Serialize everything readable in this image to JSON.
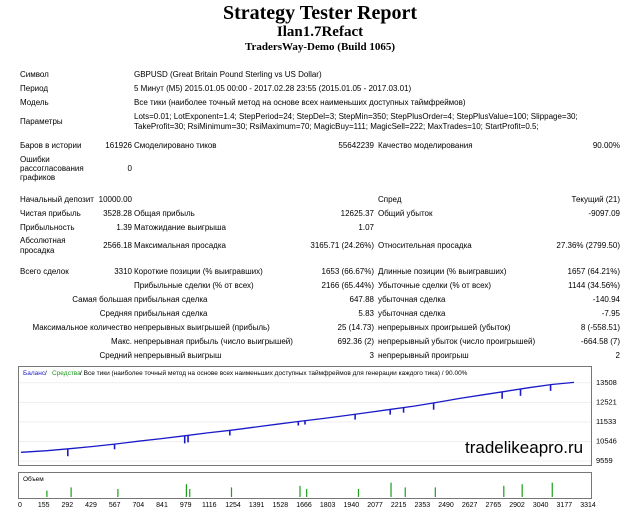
{
  "header": {
    "title": "Strategy Tester Report",
    "ea_name": "Ilan1.7Refact",
    "server": "TradersWay-Demo (Build 1065)"
  },
  "info": {
    "symbol_label": "Символ",
    "symbol_value": "GBPUSD (Great Britain Pound Sterling vs US Dollar)",
    "period_label": "Период",
    "period_value": "5 Минут (M5) 2015.01.05 00:00 - 2017.02.28 23:55 (2015.01.05 - 2017.03.01)",
    "model_label": "Модель",
    "model_value": "Все тики (наиболее точный метод на основе всех наименьших доступных таймфреймов)",
    "params_label": "Параметры",
    "params_line1": "Lots=0.01; LotExponent=1.4; StepPeriod=24; StepDel=3; StepMin=350; StepPlusOrder=4; StepPlusValue=100; Slippage=30;",
    "params_line2": "TakeProfit=30; RsiMinimum=30; RsiMaximum=70; MagicBuy=111; MagicSell=222; MaxTrades=10; StartProfit=0.5;"
  },
  "stats": {
    "bars_label": "Баров в истории",
    "bars_value": "161926",
    "ticks_label": "Смоделировано тиков",
    "ticks_value": "55642239",
    "quality_label": "Качество моделирования",
    "quality_value": "90.00%",
    "errors_label_1": "Ошибки",
    "errors_label_2": "рассогласования",
    "errors_label_3": "графиков",
    "errors_value": "0",
    "deposit_label": "Начальный депозит",
    "deposit_value": "10000.00",
    "spread_label": "Спред",
    "spread_value": "Текущий (21)",
    "net_label": "Чистая прибыль",
    "net_value": "3528.28",
    "gross_profit_label": "Общая прибыль",
    "gross_profit_value": "12625.37",
    "gross_loss_label": "Общий убыток",
    "gross_loss_value": "-9097.09",
    "pf_label": "Прибыльность",
    "pf_value": "1.39",
    "expected_label": "Матожидание выигрыша",
    "expected_value": "1.07",
    "abs_dd_label_1": "Абсолютная",
    "abs_dd_label_2": "просадка",
    "abs_dd_value": "2566.18",
    "max_dd_label": "Максимальная просадка",
    "max_dd_value": "3165.71 (24.26%)",
    "rel_dd_label": "Относительная просадка",
    "rel_dd_value": "27.36% (2799.50)",
    "trades_label": "Всего сделок",
    "trades_value": "3310",
    "short_label": "Короткие позиции (% выигравших)",
    "short_value": "1653 (66.67%)",
    "long_label": "Длинные позиции (% выигравших)",
    "long_value": "1657 (64.21%)",
    "profit_trades_label": "Прибыльные сделки (% от всех)",
    "profit_trades_value": "2166 (65.44%)",
    "loss_trades_label": "Убыточные сделки (% от всех)",
    "loss_trades_value": "1144 (34.56%)",
    "largest_label": "Самая большая",
    "largest_profit_label": "прибыльная сделка",
    "largest_profit_value": "647.88",
    "largest_loss_label": "убыточная сделка",
    "largest_loss_value": "-140.94",
    "average_label": "Средняя",
    "average_profit_label": "прибыльная сделка",
    "average_profit_value": "5.83",
    "average_loss_label": "убыточная сделка",
    "average_loss_value": "-7.95",
    "max_count_label": "Максимальное количество",
    "max_cons_wins_label": "непрерывных выигрышей (прибыль)",
    "max_cons_wins_value": "25 (14.73)",
    "max_cons_losses_label": "непрерывных проигрышей (убыток)",
    "max_cons_losses_value": "8 (-558.51)",
    "max_label": "Макс.",
    "max_cons_profit_label": "непрерывная прибыль (число выигрышей)",
    "max_cons_profit_value": "692.36 (2)",
    "max_cons_loss_label": "непрерывный убыток (число проигрышей)",
    "max_cons_loss_value": "-664.58 (7)",
    "avg_label": "Средний",
    "avg_cons_wins_label": "непрерывный выигрыш",
    "avg_cons_wins_value": "3",
    "avg_cons_losses_label": "непрерывный проигрыш",
    "avg_cons_losses_value": "2"
  },
  "chart_data": {
    "type": "line",
    "title_balance": "Баланс",
    "title_sep": " / ",
    "title_equity": "Средства",
    "title_rest": " / Все тики (наиболее точный метод на основе всех наименьших доступных таймфреймов для генерации каждого тика) / 90.00%",
    "volume_label": "Объем",
    "watermark": "tradelikeapro.ru",
    "ylim": [
      9559,
      13700
    ],
    "xlim": [
      0,
      3400
    ],
    "yticks": [
      "13508",
      "12521",
      "11533",
      "10546",
      "9559"
    ],
    "ytick_values": [
      13508,
      12521,
      11533,
      10546,
      9559
    ],
    "xticks": [
      "0",
      "155",
      "292",
      "429",
      "567",
      "704",
      "841",
      "979",
      "1116",
      "1254",
      "1391",
      "1528",
      "1666",
      "1803",
      "1940",
      "2077",
      "2215",
      "2353",
      "2490",
      "2627",
      "2765",
      "2902",
      "3040",
      "3177",
      "3314"
    ],
    "balance_x": [
      0,
      155,
      292,
      429,
      567,
      704,
      841,
      979,
      1116,
      1254,
      1391,
      1528,
      1666,
      1803,
      1940,
      2077,
      2215,
      2353,
      2490,
      2627,
      2765,
      2902,
      3040,
      3177,
      3310
    ],
    "balance_y": [
      10000,
      10080,
      10180,
      10290,
      10420,
      10560,
      10690,
      10830,
      10980,
      11110,
      11260,
      11410,
      11560,
      11700,
      11850,
      12010,
      12170,
      12330,
      12520,
      12720,
      12900,
      13080,
      13260,
      13420,
      13528
    ],
    "equity_dips_x": [
      280,
      560,
      980,
      1000,
      1250,
      1660,
      1700,
      2000,
      2210,
      2290,
      2470,
      2880,
      2990,
      3170
    ],
    "equity_dips_y": [
      9800,
      10150,
      10450,
      10500,
      10850,
      11350,
      11400,
      11650,
      11900,
      12000,
      12150,
      12700,
      12850,
      13100
    ],
    "volume_x": [
      155,
      300,
      580,
      990,
      1010,
      1260,
      1670,
      1710,
      2020,
      2215,
      2300,
      2480,
      2890,
      3000,
      3180
    ],
    "volume_y": [
      0.4,
      0.6,
      0.5,
      0.8,
      0.5,
      0.6,
      0.7,
      0.5,
      0.5,
      0.9,
      0.6,
      0.6,
      0.7,
      0.8,
      0.9
    ],
    "colors": {
      "balance": "#1a1ac8",
      "equity": "#1a9a1a",
      "volume": "#1aa01a"
    }
  }
}
